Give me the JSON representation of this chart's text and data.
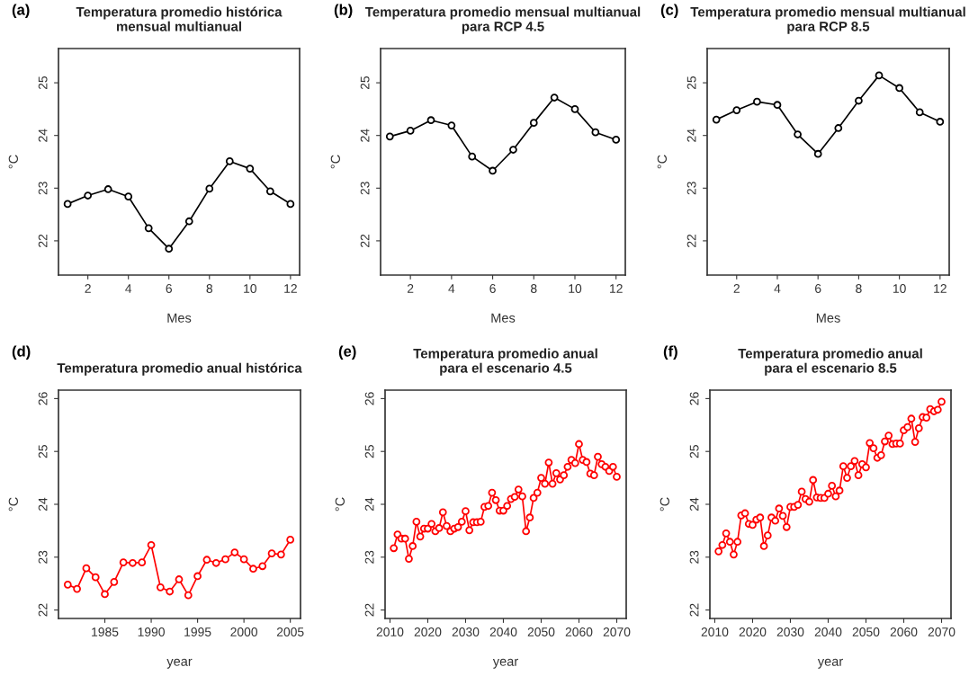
{
  "chart_data": [
    {
      "type": "line",
      "title": "Temperatura promedio histórica\nmensual multianual",
      "annotations": [
        "(a)"
      ],
      "xlabel": "Mes",
      "ylabel": "°C",
      "x": [
        1,
        2,
        3,
        4,
        5,
        6,
        7,
        8,
        9,
        10,
        11,
        12
      ],
      "xlim": [
        0.55,
        12.45
      ],
      "xticks": [
        2,
        4,
        6,
        8,
        10,
        12
      ],
      "ylim": [
        21.35,
        25.65
      ],
      "yticks": [
        22,
        23,
        24,
        25
      ],
      "marker": "circle",
      "line_style": "solid",
      "series": [
        {
          "color": "#000000",
          "values": [
            22.7,
            22.86,
            22.98,
            22.84,
            22.24,
            21.85,
            22.37,
            22.99,
            23.51,
            23.37,
            22.94,
            22.7
          ]
        }
      ]
    },
    {
      "type": "line",
      "title": "Temperatura promedio mensual multianual\npara RCP 4.5",
      "annotations": [
        "(b)"
      ],
      "xlabel": "Mes",
      "ylabel": "°C",
      "x": [
        1,
        2,
        3,
        4,
        5,
        6,
        7,
        8,
        9,
        10,
        11,
        12
      ],
      "xlim": [
        0.55,
        12.45
      ],
      "xticks": [
        2,
        4,
        6,
        8,
        10,
        12
      ],
      "ylim": [
        21.35,
        25.65
      ],
      "yticks": [
        22,
        23,
        24,
        25
      ],
      "marker": "circle",
      "line_style": "solid",
      "series": [
        {
          "color": "#000000",
          "values": [
            23.98,
            24.09,
            24.29,
            24.19,
            23.6,
            23.33,
            23.73,
            24.24,
            24.72,
            24.5,
            24.06,
            23.92
          ]
        }
      ]
    },
    {
      "type": "line",
      "title": "Temperatura promedio mensual multianual\npara RCP 8.5",
      "annotations": [
        "(c)"
      ],
      "xlabel": "Mes",
      "ylabel": "°C",
      "x": [
        1,
        2,
        3,
        4,
        5,
        6,
        7,
        8,
        9,
        10,
        11,
        12
      ],
      "xlim": [
        0.55,
        12.45
      ],
      "xticks": [
        2,
        4,
        6,
        8,
        10,
        12
      ],
      "ylim": [
        21.35,
        25.65
      ],
      "yticks": [
        22,
        23,
        24,
        25
      ],
      "marker": "circle",
      "line_style": "solid",
      "series": [
        {
          "color": "#000000",
          "values": [
            24.3,
            24.48,
            24.64,
            24.58,
            24.02,
            23.65,
            24.14,
            24.66,
            25.14,
            24.9,
            24.44,
            24.26
          ]
        }
      ]
    },
    {
      "type": "line",
      "title": "Temperatura promedio anual histórica",
      "annotations": [
        "(d)"
      ],
      "xlabel": "year",
      "ylabel": "°C",
      "x": [
        1981,
        1982,
        1983,
        1984,
        1985,
        1986,
        1987,
        1988,
        1989,
        1990,
        1991,
        1992,
        1993,
        1994,
        1995,
        1996,
        1997,
        1998,
        1999,
        2000,
        2001,
        2002,
        2003,
        2004,
        2005
      ],
      "xlim": [
        1980.0,
        2006.1
      ],
      "xticks": [
        1985,
        1990,
        1995,
        2000,
        2005
      ],
      "ylim": [
        21.84,
        26.16
      ],
      "yticks": [
        22,
        23,
        24,
        25,
        26
      ],
      "marker": "circle",
      "line_style": "solid",
      "series": [
        {
          "color": "#ff0000",
          "values": [
            22.48,
            22.4,
            22.79,
            22.62,
            22.3,
            22.53,
            22.9,
            22.89,
            22.9,
            23.23,
            22.43,
            22.35,
            22.58,
            22.28,
            22.64,
            22.95,
            22.89,
            22.96,
            23.09,
            22.96,
            22.78,
            22.83,
            23.07,
            23.05,
            23.33
          ]
        }
      ]
    },
    {
      "type": "line",
      "title": "Temperatura promedio anual\npara el escenario 4.5",
      "annotations": [
        "(e)"
      ],
      "xlabel": "year",
      "ylabel": "°C",
      "x": [
        2011,
        2012,
        2013,
        2014,
        2015,
        2016,
        2017,
        2018,
        2019,
        2020,
        2021,
        2022,
        2023,
        2024,
        2025,
        2026,
        2027,
        2028,
        2029,
        2030,
        2031,
        2032,
        2033,
        2034,
        2035,
        2036,
        2037,
        2038,
        2039,
        2040,
        2041,
        2042,
        2043,
        2044,
        2045,
        2046,
        2047,
        2048,
        2049,
        2050,
        2051,
        2052,
        2053,
        2054,
        2055,
        2056,
        2057,
        2058,
        2059,
        2060,
        2061,
        2062,
        2063,
        2064,
        2065,
        2066,
        2067,
        2068,
        2069,
        2070
      ],
      "xlim": [
        2008.7,
        2072.5
      ],
      "xticks": [
        2010,
        2020,
        2030,
        2040,
        2050,
        2060,
        2070
      ],
      "ylim": [
        21.84,
        26.16
      ],
      "yticks": [
        22,
        23,
        24,
        25,
        26
      ],
      "marker": "circle",
      "line_style": "solid",
      "series": [
        {
          "color": "#ff0000",
          "values": [
            23.17,
            23.43,
            23.35,
            23.35,
            22.97,
            23.21,
            23.67,
            23.39,
            23.54,
            23.54,
            23.63,
            23.49,
            23.55,
            23.85,
            23.59,
            23.49,
            23.54,
            23.57,
            23.67,
            23.87,
            23.51,
            23.66,
            23.66,
            23.67,
            23.95,
            23.97,
            24.22,
            24.08,
            23.88,
            23.88,
            23.97,
            24.1,
            24.14,
            24.28,
            24.15,
            23.49,
            23.75,
            24.12,
            24.22,
            24.5,
            24.39,
            24.79,
            24.39,
            24.59,
            24.47,
            24.55,
            24.71,
            24.84,
            24.78,
            25.14,
            24.84,
            24.8,
            24.58,
            24.55,
            24.9,
            24.76,
            24.71,
            24.63,
            24.71,
            24.52
          ]
        }
      ]
    },
    {
      "type": "line",
      "title": "Temperatura promedio anual\npara el escenario 8.5",
      "annotations": [
        "(f)"
      ],
      "xlabel": "year",
      "ylabel": "°C",
      "x": [
        2011,
        2012,
        2013,
        2014,
        2015,
        2016,
        2017,
        2018,
        2019,
        2020,
        2021,
        2022,
        2023,
        2024,
        2025,
        2026,
        2027,
        2028,
        2029,
        2030,
        2031,
        2032,
        2033,
        2034,
        2035,
        2036,
        2037,
        2038,
        2039,
        2040,
        2041,
        2042,
        2043,
        2044,
        2045,
        2046,
        2047,
        2048,
        2049,
        2050,
        2051,
        2052,
        2053,
        2054,
        2055,
        2056,
        2057,
        2058,
        2059,
        2060,
        2061,
        2062,
        2063,
        2064,
        2065,
        2066,
        2067,
        2068,
        2069,
        2070
      ],
      "xlim": [
        2008.7,
        2072.5
      ],
      "xticks": [
        2010,
        2020,
        2030,
        2040,
        2050,
        2060,
        2070
      ],
      "ylim": [
        21.84,
        26.16
      ],
      "yticks": [
        22,
        23,
        24,
        25,
        26
      ],
      "marker": "circle",
      "line_style": "solid",
      "series": [
        {
          "color": "#ff0000",
          "values": [
            23.11,
            23.23,
            23.45,
            23.29,
            23.05,
            23.29,
            23.79,
            23.83,
            23.63,
            23.61,
            23.71,
            23.75,
            23.21,
            23.41,
            23.75,
            23.69,
            23.92,
            23.78,
            23.57,
            23.95,
            23.95,
            23.99,
            24.24,
            24.1,
            24.05,
            24.46,
            24.13,
            24.12,
            24.12,
            24.2,
            24.35,
            24.15,
            24.26,
            24.72,
            24.5,
            24.72,
            24.82,
            24.55,
            24.76,
            24.7,
            25.16,
            25.06,
            24.88,
            24.93,
            25.19,
            25.3,
            25.14,
            25.15,
            25.15,
            25.4,
            25.46,
            25.62,
            25.18,
            25.44,
            25.65,
            25.64,
            25.8,
            25.76,
            25.79,
            25.94
          ]
        }
      ]
    }
  ]
}
